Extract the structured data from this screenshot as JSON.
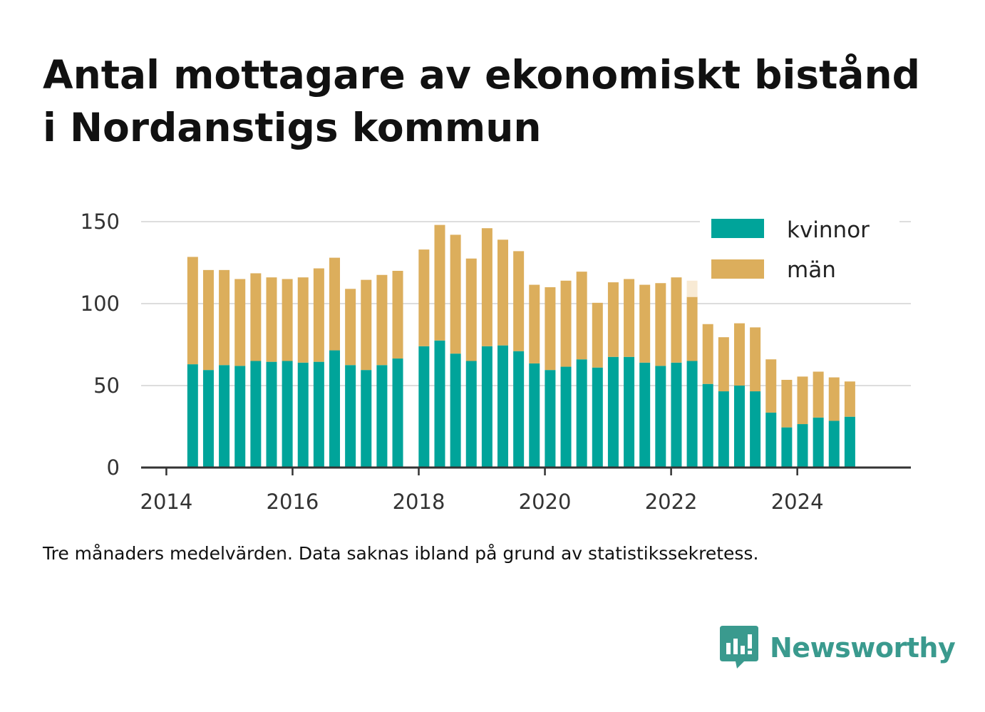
{
  "title_lines": [
    "Antal mottagare av ekonomiskt bistånd",
    "i Nordanstigs kommun"
  ],
  "note": "Tre månaders medelvärden. Data saknas ibland på grund av statistikssekretess.",
  "brand": {
    "name": "Newsworthy",
    "color": "#3a9a8e",
    "logo_icon": "chart-speech-bubble-icon"
  },
  "chart_data": {
    "type": "bar",
    "stacked": true,
    "title": "Antal mottagare av ekonomiskt bistånd i Nordanstigs kommun",
    "xlabel": "",
    "ylabel": "",
    "ylim": [
      0,
      150
    ],
    "yticks": [
      0,
      50,
      100,
      150
    ],
    "xlim": [
      2013.6,
      2025.8
    ],
    "xticks": [
      2014,
      2016,
      2018,
      2020,
      2022,
      2024
    ],
    "grid": true,
    "legend_position": "top-right",
    "periods": [
      2014.417,
      2014.667,
      2014.917,
      2015.167,
      2015.417,
      2015.667,
      2015.917,
      2016.167,
      2016.417,
      2016.667,
      2016.917,
      2017.167,
      2017.417,
      2017.667,
      2018.083,
      2018.333,
      2018.583,
      2018.833,
      2019.083,
      2019.333,
      2019.583,
      2019.833,
      2020.083,
      2020.333,
      2020.583,
      2020.833,
      2021.083,
      2021.333,
      2021.583,
      2021.833,
      2022.083,
      2022.333,
      2022.583,
      2022.833,
      2023.083,
      2023.333,
      2023.583,
      2023.833,
      2024.083,
      2024.333,
      2024.583,
      2024.833
    ],
    "series": [
      {
        "name": "kvinnor",
        "color": "#00a49a",
        "values": [
          63,
          59.5,
          62.5,
          62,
          65,
          64.5,
          65,
          64,
          64.5,
          71.5,
          62.5,
          59.5,
          62.5,
          66.5,
          74,
          77.5,
          69.5,
          65,
          74,
          74.5,
          71,
          63.5,
          59.5,
          61.5,
          66,
          61,
          67.5,
          67.5,
          64,
          62,
          64,
          65,
          51,
          46.5,
          50,
          46.5,
          33.5,
          24.5,
          26.5,
          30.5,
          28.5,
          31
        ]
      },
      {
        "name": "män",
        "color": "#dcae5c",
        "values": [
          65.5,
          61,
          58,
          53,
          53.5,
          51.5,
          50,
          52,
          57,
          56.5,
          46.5,
          55,
          55,
          53.5,
          59,
          70.5,
          72.5,
          62.5,
          72,
          64.5,
          61,
          48,
          50.5,
          52.5,
          53.5,
          39.5,
          45.5,
          47.5,
          47.5,
          50.5,
          52,
          39.5,
          36.5,
          33,
          38,
          39,
          32.5,
          29,
          29,
          28,
          26.5,
          21.5
        ]
      }
    ],
    "highlight": {
      "period": 2022.333,
      "from": 114,
      "to": 104,
      "color": "#f8ead4"
    }
  }
}
